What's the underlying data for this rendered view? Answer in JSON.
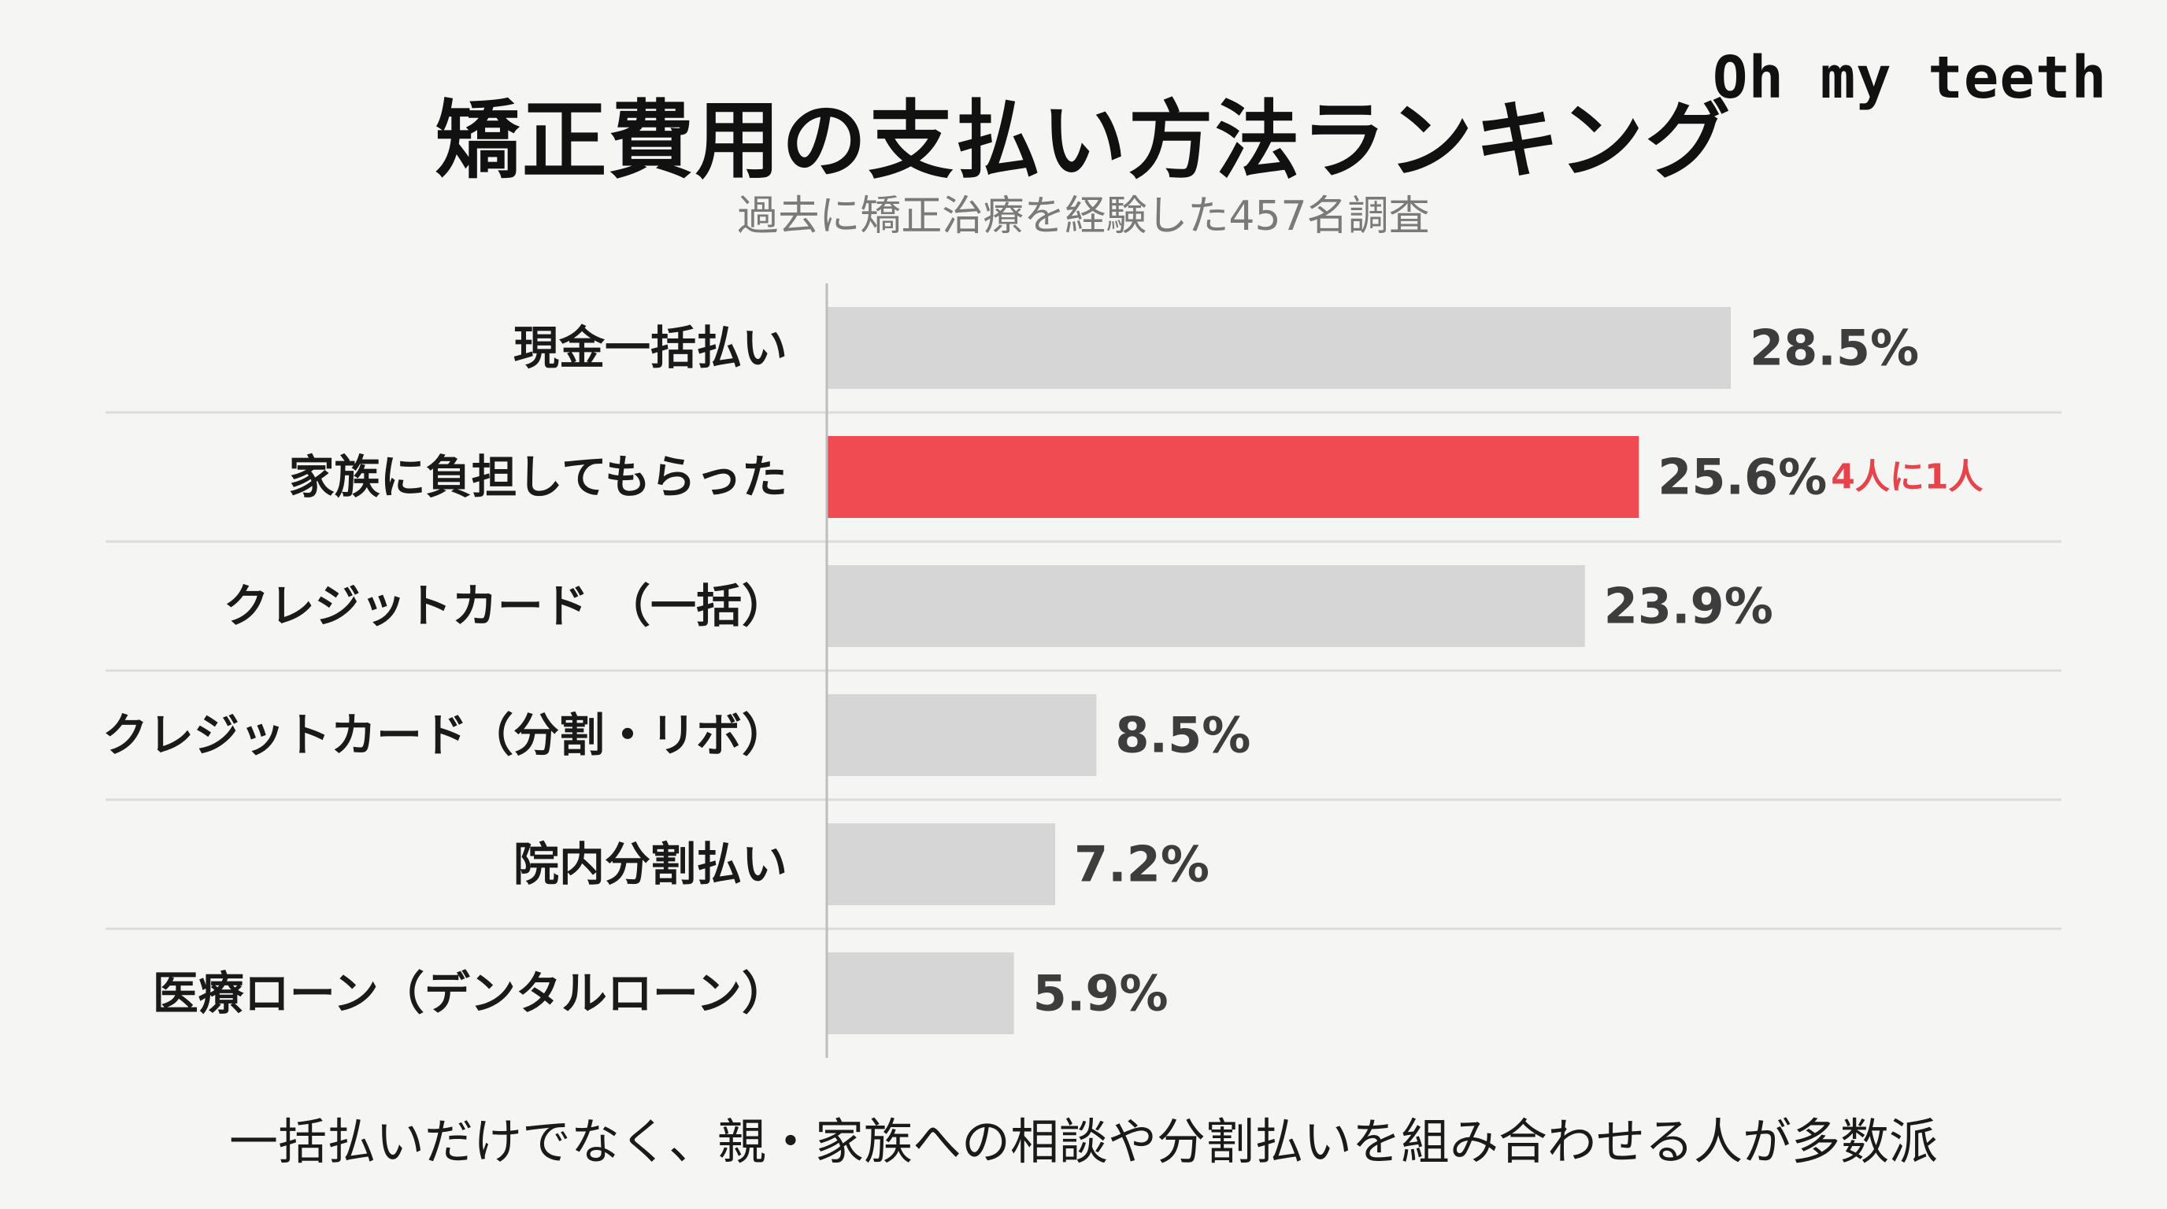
{
  "header": {
    "title": "矯正費用の支払い方法ランキング",
    "subtitle": "過去に矯正治療を経験した457名調査",
    "logo": "Oh my teeth"
  },
  "chart_data": {
    "type": "bar",
    "orientation": "horizontal",
    "title": "矯正費用の支払い方法ランキング",
    "subtitle": "過去に矯正治療を経験した457名調査",
    "categories": [
      "現金一括払い",
      "家族に負担してもらった",
      "クレジットカード （一括）",
      "クレジットカード（分割・リボ）",
      "院内分割払い",
      "医療ローン（デンタルローン）"
    ],
    "values": [
      28.5,
      25.6,
      23.9,
      8.5,
      7.2,
      5.9
    ],
    "value_labels": [
      "28.5%",
      "25.6%",
      "23.9%",
      "8.5%",
      "7.2%",
      "5.9%"
    ],
    "unit": "%",
    "highlight_index": 1,
    "annotation": "4人に1人",
    "xlim": [
      0,
      35.5
    ],
    "grid": false,
    "colors": {
      "default": "#d6d6d6",
      "highlight": "#f04a52",
      "annotation": "#e8424a",
      "label": "#1a1a1a",
      "value": "#3d3d3d",
      "separator": "#dcdcdc",
      "axis": "#bdbdbd"
    }
  },
  "footer": {
    "text": "一括払いだけでなく、親・家族への相談や分割払いを組み合わせる人が多数派"
  }
}
